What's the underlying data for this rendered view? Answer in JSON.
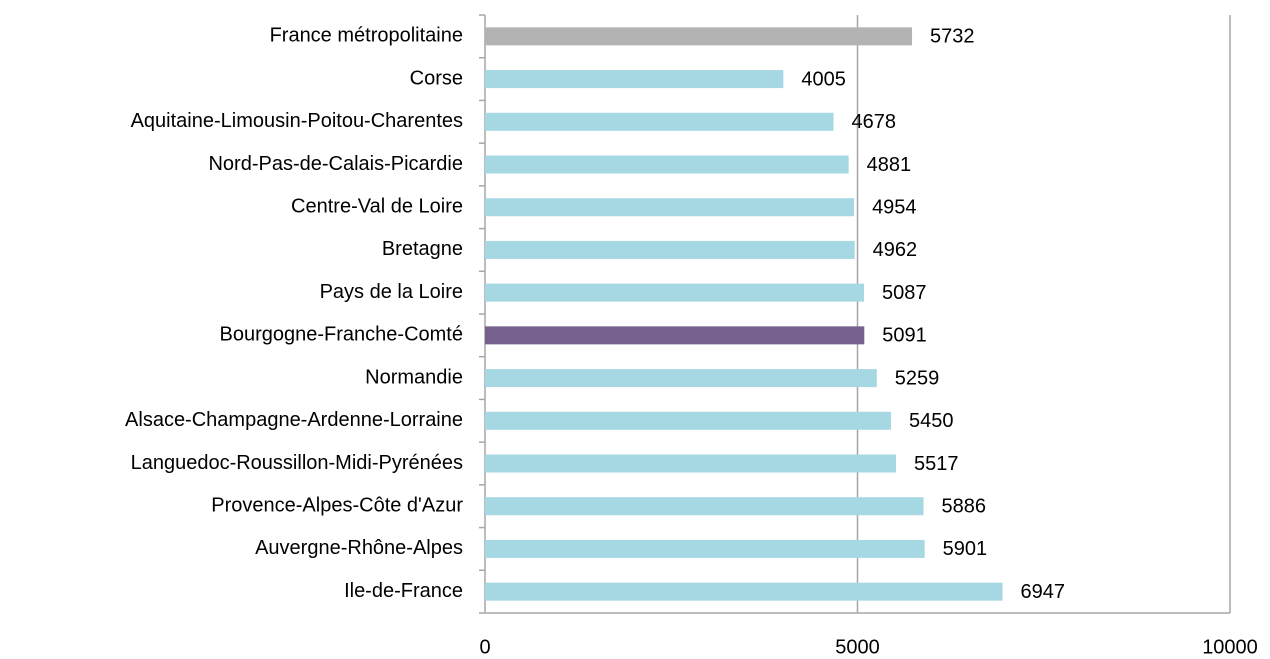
{
  "chart_data": {
    "type": "bar",
    "orientation": "horizontal",
    "categories": [
      "France métropolitaine",
      "Corse",
      "Aquitaine-Limousin-Poitou-Charentes",
      "Nord-Pas-de-Calais-Picardie",
      "Centre-Val de Loire",
      "Bretagne",
      "Pays de la Loire",
      "Bourgogne-Franche-Comté",
      "Normandie",
      "Alsace-Champagne-Ardenne-Lorraine",
      "Languedoc-Roussillon-Midi-Pyrénées",
      "Provence-Alpes-Côte d'Azur",
      "Auvergne-Rhône-Alpes",
      "Ile-de-France"
    ],
    "values": [
      5732,
      4005,
      4678,
      4881,
      4954,
      4962,
      5087,
      5091,
      5259,
      5450,
      5517,
      5886,
      5901,
      6947
    ],
    "colors": [
      "#b3b3b3",
      "#a5d8e3",
      "#a5d8e3",
      "#a5d8e3",
      "#a5d8e3",
      "#a5d8e3",
      "#a5d8e3",
      "#77618e",
      "#a5d8e3",
      "#a5d8e3",
      "#a5d8e3",
      "#a5d8e3",
      "#a5d8e3",
      "#a5d8e3"
    ],
    "xlim": [
      0,
      10000
    ],
    "xticks": [
      0,
      5000,
      10000
    ],
    "grid": true
  }
}
